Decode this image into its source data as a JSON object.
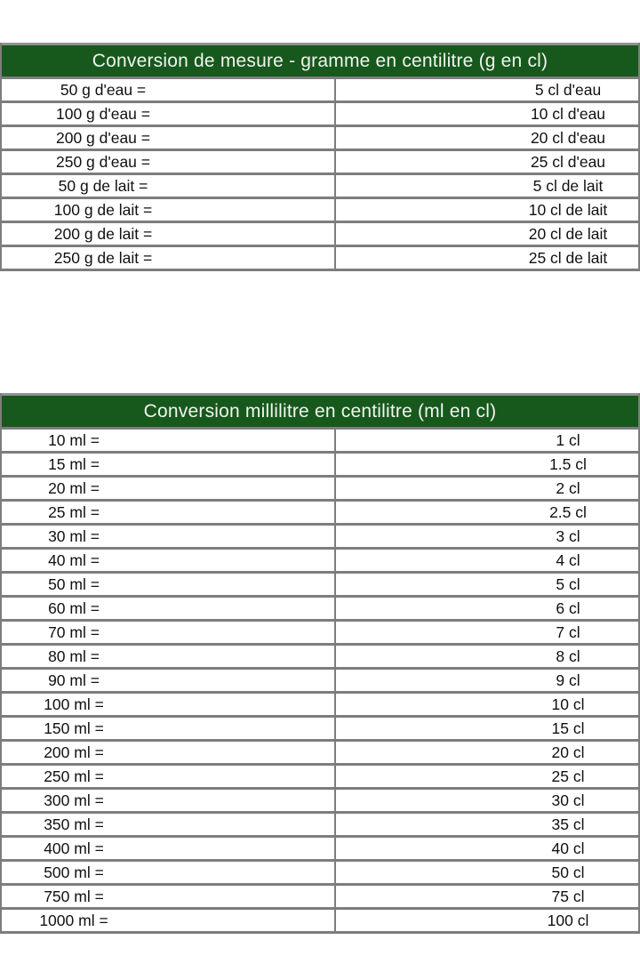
{
  "colors": {
    "header_background": "#17581c",
    "header_text": "#f0f5ef",
    "row_text": "#111111",
    "border": "#7d7d7d",
    "page_background": "#ffffff"
  },
  "tables": [
    {
      "id": "gram-to-centilitre",
      "title": "Conversion de mesure - gramme en centilitre (g en cl)",
      "rows": [
        {
          "from": "50 g d'eau =",
          "to": "5 cl d'eau"
        },
        {
          "from": "100 g d'eau =",
          "to": "10 cl d'eau"
        },
        {
          "from": "200 g d'eau =",
          "to": "20 cl d'eau"
        },
        {
          "from": "250 g d'eau =",
          "to": "25 cl d'eau"
        },
        {
          "from": "50 g de lait =",
          "to": "5 cl de lait"
        },
        {
          "from": "100 g de lait =",
          "to": "10 cl de lait"
        },
        {
          "from": "200 g de lait =",
          "to": "20 cl de lait"
        },
        {
          "from": "250 g de lait =",
          "to": "25 cl de lait"
        }
      ]
    },
    {
      "id": "millilitre-to-centilitre",
      "title": "Conversion millilitre en centilitre (ml en cl)",
      "rows": [
        {
          "from": "10 ml =",
          "to": "1 cl"
        },
        {
          "from": "15 ml =",
          "to": "1.5 cl"
        },
        {
          "from": "20 ml =",
          "to": "2 cl"
        },
        {
          "from": "25 ml =",
          "to": "2.5 cl"
        },
        {
          "from": "30 ml =",
          "to": "3 cl"
        },
        {
          "from": "40 ml =",
          "to": "4 cl"
        },
        {
          "from": "50 ml =",
          "to": "5 cl"
        },
        {
          "from": "60 ml =",
          "to": "6 cl"
        },
        {
          "from": "70 ml =",
          "to": "7 cl"
        },
        {
          "from": "80 ml =",
          "to": "8 cl"
        },
        {
          "from": "90 ml =",
          "to": "9 cl"
        },
        {
          "from": "100 ml =",
          "to": "10 cl"
        },
        {
          "from": "150 ml =",
          "to": "15 cl"
        },
        {
          "from": "200 ml =",
          "to": "20 cl"
        },
        {
          "from": "250 ml =",
          "to": "25 cl"
        },
        {
          "from": "300 ml =",
          "to": "30 cl"
        },
        {
          "from": "350 ml =",
          "to": "35 cl"
        },
        {
          "from": "400 ml =",
          "to": "40 cl"
        },
        {
          "from": "500 ml =",
          "to": "50 cl"
        },
        {
          "from": "750 ml =",
          "to": "75 cl"
        },
        {
          "from": "1000 ml =",
          "to": "100 cl"
        }
      ]
    }
  ]
}
